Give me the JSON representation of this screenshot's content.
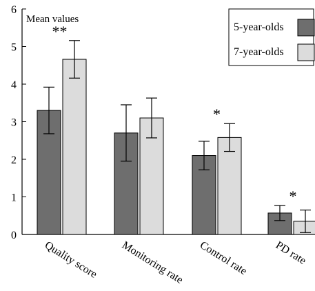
{
  "chart_data": {
    "type": "bar",
    "ylabel": "Mean values",
    "ylim": [
      0,
      6
    ],
    "yticks": [
      "0",
      "1",
      "2",
      "3",
      "4",
      "5",
      "6"
    ],
    "categories": [
      "Quality score",
      "Monitoring rate",
      "Control rate",
      "PD rate"
    ],
    "series": [
      {
        "name": "5-year-olds",
        "color": "#6e6e6e",
        "values": [
          3.3,
          2.7,
          2.1,
          0.57
        ],
        "errors": [
          0.62,
          0.75,
          0.38,
          0.2
        ]
      },
      {
        "name": "7-year-olds",
        "color": "#dcdcdc",
        "values": [
          4.66,
          3.1,
          2.58,
          0.35
        ],
        "errors": [
          0.5,
          0.53,
          0.37,
          0.3
        ]
      }
    ],
    "significance": [
      "**",
      "",
      "*",
      "*"
    ],
    "legend_position": "top-right",
    "grid": false
  }
}
